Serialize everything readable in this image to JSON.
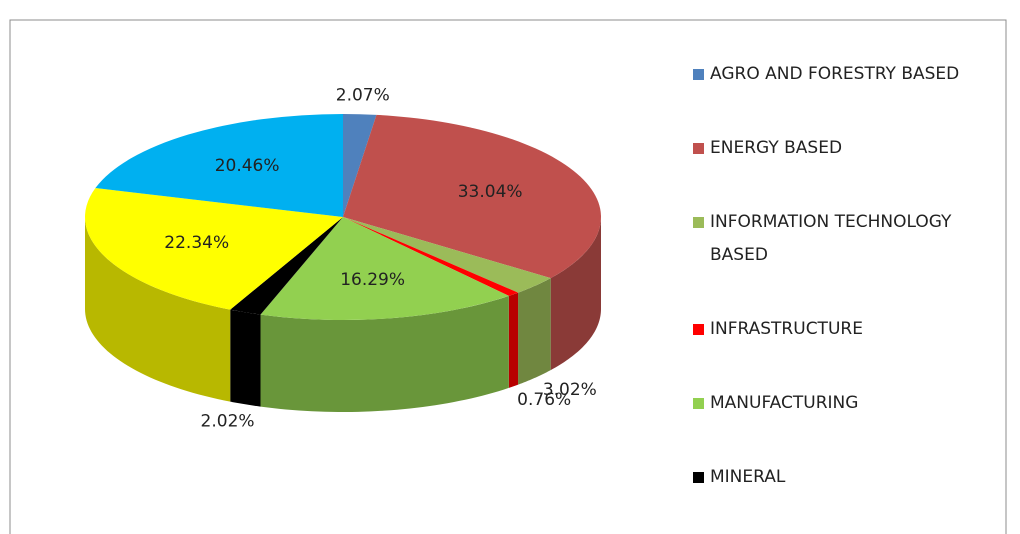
{
  "chart_data": {
    "type": "pie",
    "categories": [
      "AGRO AND FORESTRY BASED",
      "ENERGY BASED",
      "INFORMATION TECHNOLOGY BASED",
      "INFRASTRUCTURE",
      "MANUFACTURING",
      "MINERAL",
      null,
      null
    ],
    "values": [
      2.07,
      33.04,
      3.02,
      0.76,
      16.29,
      2.02,
      22.34,
      20.46
    ],
    "value_labels": [
      "2.07%",
      "33.04%",
      "3.02%",
      "0.76%",
      "16.29%",
      "2.02%",
      "22.34%",
      "20.46%"
    ],
    "colors": [
      "#4f81bd",
      "#c0504d",
      "#9bbb59",
      "#ff0000",
      "#92d050",
      "#000000",
      "#ffff00",
      "#00b0f0"
    ],
    "legend": "right"
  }
}
